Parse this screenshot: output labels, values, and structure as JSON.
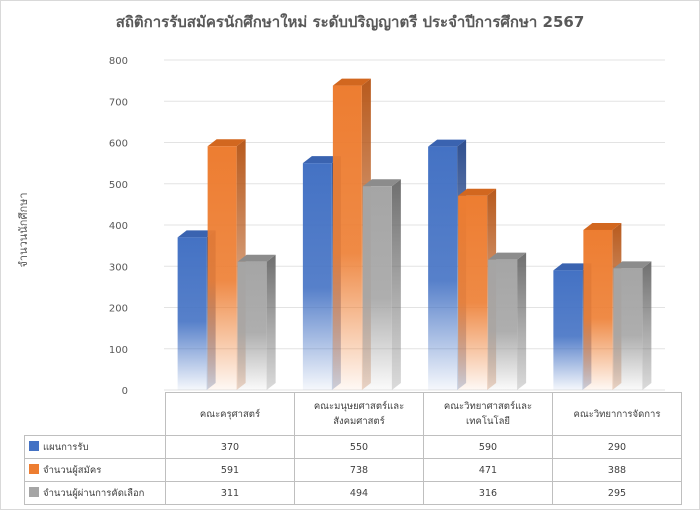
{
  "chart_data": {
    "type": "bar",
    "title": "สถิติการรับสมัครนักศึกษาใหม่ ระดับปริญญาตรี ประจำปีการศึกษา 2567",
    "ylabel": "จำนวนนักศึกษา",
    "xlabel": "",
    "ylim": [
      0,
      800
    ],
    "yticks": [
      0,
      100,
      200,
      300,
      400,
      500,
      600,
      700,
      800
    ],
    "grid": true,
    "legend": "data-table",
    "categories": [
      "คณะครุศาสตร์",
      "คณะมนุษยศาสตร์และสังคมศาสตร์",
      "คณะวิทยาศาสตร์และเทคโนโลยี",
      "คณะวิทยาการจัดการ"
    ],
    "category_lines": [
      [
        "คณะครุศาสตร์"
      ],
      [
        "คณะมนุษยศาสตร์และ",
        "สังคมศาสตร์"
      ],
      [
        "คณะวิทยาศาสตร์และ",
        "เทคโนโลยี"
      ],
      [
        "คณะวิทยาการจัดการ"
      ]
    ],
    "series": [
      {
        "name": "แผนการรับ",
        "values": [
          370,
          550,
          590,
          290
        ],
        "color": "#4472c4",
        "side": "#2f4f8f",
        "top": "#3a63b0"
      },
      {
        "name": "จำนวนผู้สมัคร",
        "values": [
          591,
          738,
          471,
          388
        ],
        "color": "#ed7d31",
        "side": "#b85a1d",
        "top": "#d2671f"
      },
      {
        "name": "จำนวนผู้ผ่านการคัดเลือก",
        "values": [
          311,
          494,
          316,
          295
        ],
        "color": "#a5a5a5",
        "side": "#6f6f6f",
        "top": "#8c8c8c"
      }
    ]
  }
}
